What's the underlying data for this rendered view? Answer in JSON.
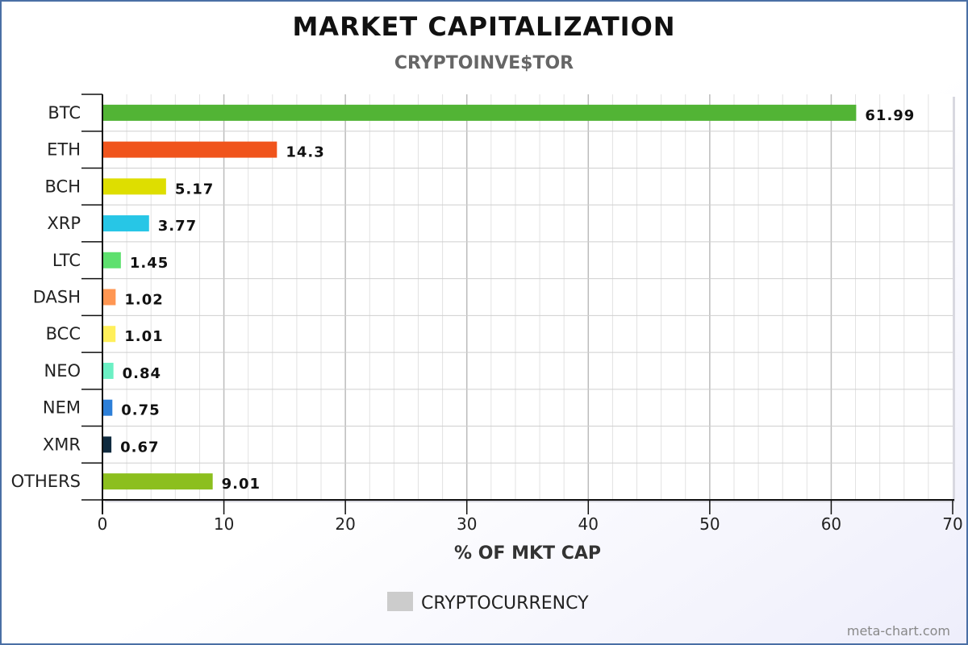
{
  "chart_data": {
    "type": "bar",
    "orientation": "horizontal",
    "title": "MARKET CAPITALIZATION",
    "subtitle": "CRYPTOINVE$TOR",
    "xlabel": "% OF MKT CAP",
    "ylabel": "",
    "xlim": [
      0,
      70
    ],
    "xticks": [
      0,
      10,
      20,
      30,
      40,
      50,
      60,
      70
    ],
    "grid": true,
    "categories": [
      "BTC",
      "ETH",
      "BCH",
      "XRP",
      "LTC",
      "DASH",
      "BCC",
      "NEO",
      "NEM",
      "XMR",
      "OTHERS"
    ],
    "values": [
      61.99,
      14.3,
      5.17,
      3.77,
      1.45,
      1.02,
      1.01,
      0.84,
      0.75,
      0.67,
      9.01
    ],
    "value_labels": [
      "61.99",
      "14.3",
      "5.17",
      "3.77",
      "1.45",
      "1.02",
      "1.01",
      "0.84",
      "0.75",
      "0.67",
      "9.01"
    ],
    "colors": [
      "#52b435",
      "#f0541c",
      "#dede00",
      "#27c6e6",
      "#5ee06e",
      "#ff9652",
      "#ffef5a",
      "#6bf0c4",
      "#2d7fd8",
      "#0f2a3e",
      "#8cbf1e"
    ],
    "legend": {
      "label": "CRYPTOCURRENCY",
      "color": "#cccccc",
      "position": "bottom-center"
    }
  },
  "watermark": "meta-chart.com"
}
